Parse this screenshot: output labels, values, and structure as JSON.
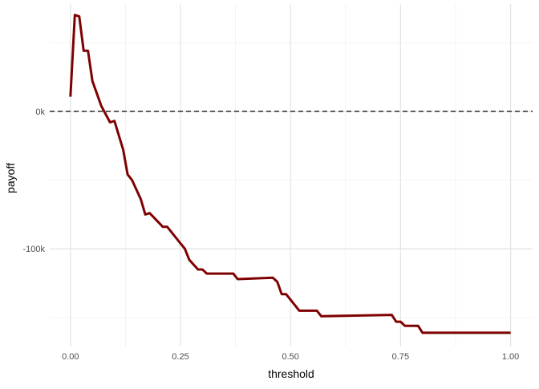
{
  "chart_data": {
    "type": "line",
    "title": "",
    "xlabel": "threshold",
    "ylabel": "payoff",
    "xlim": [
      -0.047,
      1.05
    ],
    "ylim": [
      -171000,
      78000
    ],
    "grid": true,
    "x_ticks": [
      0,
      0.25,
      0.5,
      0.75,
      1.0
    ],
    "x_tick_labels": [
      "0.00",
      "0.25",
      "0.50",
      "0.75",
      "1.00"
    ],
    "x_minor_ticks": [
      0.125,
      0.375,
      0.625,
      0.875
    ],
    "y_ticks": [
      0,
      -100000
    ],
    "y_tick_labels": [
      "0k",
      "-100k"
    ],
    "y_minor_ticks": [
      50000,
      -50000,
      -150000
    ],
    "reference_line": {
      "y": 0,
      "style": "dashed",
      "color": "#000000"
    },
    "series": [
      {
        "color": "#7f0000",
        "x": [
          0.0,
          0.01,
          0.02,
          0.03,
          0.04,
          0.05,
          0.07,
          0.09,
          0.1,
          0.12,
          0.13,
          0.14,
          0.16,
          0.17,
          0.18,
          0.21,
          0.22,
          0.25,
          0.26,
          0.27,
          0.29,
          0.3,
          0.31,
          0.37,
          0.38,
          0.46,
          0.47,
          0.48,
          0.49,
          0.52,
          0.56,
          0.57,
          0.73,
          0.74,
          0.75,
          0.76,
          0.79,
          0.8,
          1.0
        ],
        "y": [
          10600,
          70000,
          69000,
          44000,
          44000,
          22000,
          4000,
          -8000,
          -7000,
          -28000,
          -46000,
          -50000,
          -64000,
          -75000,
          -74000,
          -84000,
          -84000,
          -96000,
          -100000,
          -108000,
          -115000,
          -115000,
          -118000,
          -118000,
          -122000,
          -121000,
          -124000,
          -133000,
          -133000,
          -145000,
          -145000,
          -149000,
          -148000,
          -153000,
          -153000,
          -156000,
          -156000,
          -161000,
          -161000
        ]
      }
    ]
  }
}
